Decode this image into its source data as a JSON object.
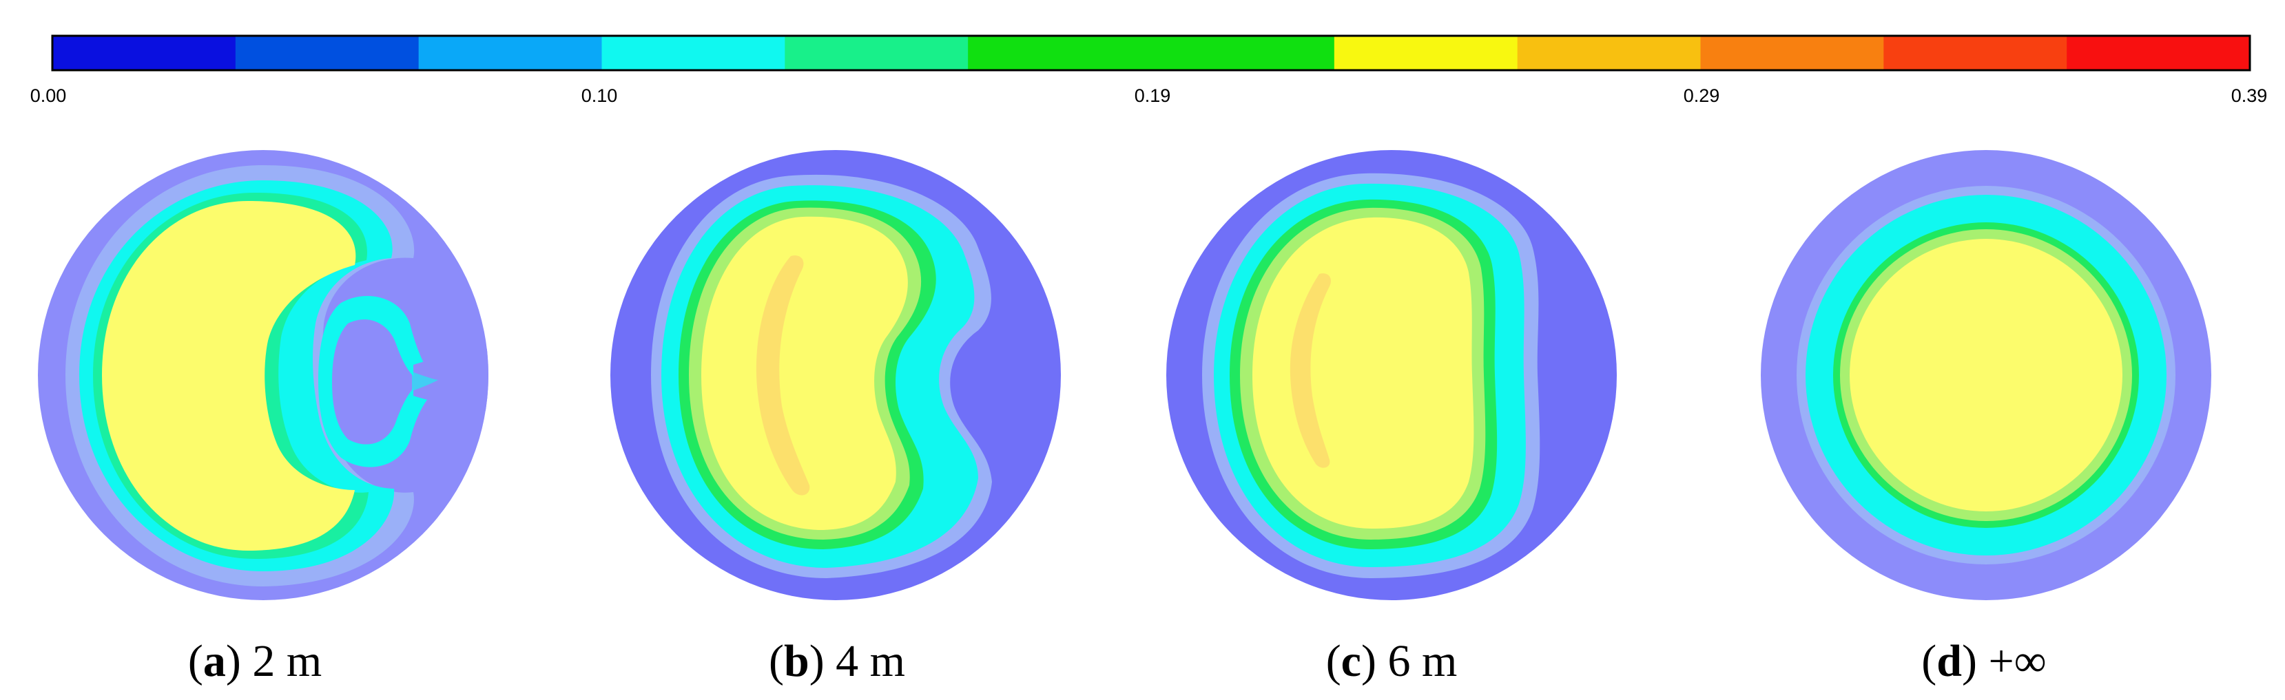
{
  "colorbar": {
    "tick_labels": [
      "0.00",
      "0.10",
      "0.19",
      "0.29",
      "0.39"
    ],
    "colors": [
      "#0a10e0",
      "#0050e0",
      "#0aa8f8",
      "#10f8f0",
      "#18f08a",
      "#10e010",
      "#10e010",
      "#f8f810",
      "#f8c010",
      "#f88010",
      "#f84010",
      "#f81010"
    ]
  },
  "panels": [
    {
      "letter": "a",
      "label": "2 m"
    },
    {
      "letter": "b",
      "label": "4 m"
    },
    {
      "letter": "c",
      "label": "6 m"
    },
    {
      "letter": "d",
      "label": "+∞"
    }
  ],
  "caption_open": "(",
  "caption_close": ")",
  "colors": {
    "outer_ring_light": "#8c8cfa",
    "outer_ring_dark": "#7070f8",
    "mid_blue": "#9ab0f8",
    "cyan": "#10f8f0",
    "green": "#20e860",
    "pale_green": "#a8f070",
    "yellow": "#fcfc6c",
    "orange": "#fce06c"
  }
}
